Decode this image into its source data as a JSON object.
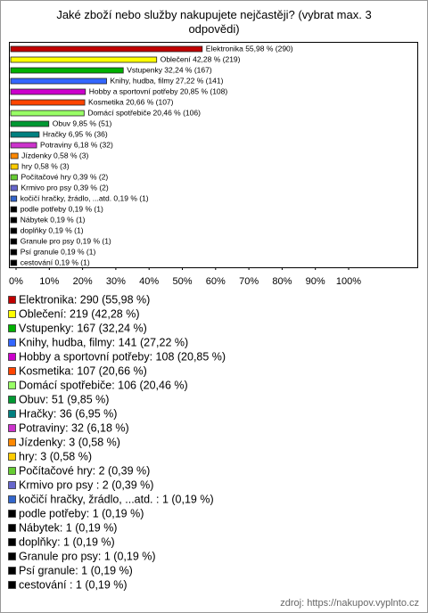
{
  "chart_data": {
    "type": "bar",
    "orientation": "horizontal",
    "title": "Jaké zboží nebo služby nakupujete nejčastěji? (vybrat max. 3 odpovědi)",
    "categories": [
      "Elektronika",
      "Oblečení",
      "Vstupenky",
      "Knihy, hudba, filmy",
      "Hobby a sportovní potřeby",
      "Kosmetika",
      "Domácí spotřebiče",
      "Obuv",
      "Hračky",
      "Potraviny",
      "Jízdenky",
      "hry",
      "Počítačové hry",
      "Krmivo pro psy ",
      "kočičí hračky, žrádlo, ...atd. ",
      "podle potřeby",
      "Nábytek",
      "doplňky",
      "Granule pro psy",
      "Psí granule",
      "cestování "
    ],
    "values": [
      55.98,
      42.28,
      32.24,
      27.22,
      20.85,
      20.66,
      20.46,
      9.85,
      6.95,
      6.18,
      0.58,
      0.58,
      0.39,
      0.39,
      0.19,
      0.19,
      0.19,
      0.19,
      0.19,
      0.19,
      0.19
    ],
    "value_labels": [
      "Elektronika 55,98 % (290)",
      "Oblečení 42,28 % (219)",
      "Vstupenky 32,24 % (167)",
      "Knihy, hudba, filmy 27,22 % (141)",
      "Hobby a sportovní potřeby 20,85 % (108)",
      "Kosmetika 20,66 % (107)",
      "Domácí spotřebiče 20,46 % (106)",
      "Obuv 9,85 % (51)",
      "Hračky 6,95 % (36)",
      "Potraviny 6,18 % (32)",
      "Jízdenky 0,58 % (3)",
      "hry 0,58 % (3)",
      "Počítačové hry 0,39 % (2)",
      "Krmivo pro psy  0,39 % (2)",
      "kočičí hračky, žrádlo, ...atd.  0,19 % (1)",
      "podle potřeby 0,19 % (1)",
      "Nábytek 0,19 % (1)",
      "doplňky 0,19 % (1)",
      "Granule pro psy 0,19 % (1)",
      "Psí granule 0,19 % (1)",
      "cestování  0,19 % (1)"
    ],
    "legend_labels": [
      "Elektronika: 290 (55,98 %)",
      "Oblečení: 219 (42,28 %)",
      "Vstupenky: 167 (32,24 %)",
      "Knihy, hudba, filmy: 141 (27,22 %)",
      "Hobby a sportovní potřeby: 108 (20,85 %)",
      "Kosmetika: 107 (20,66 %)",
      "Domácí spotřebiče: 106 (20,46 %)",
      "Obuv: 51 (9,85 %)",
      "Hračky: 36 (6,95 %)",
      "Potraviny: 32 (6,18 %)",
      "Jízdenky: 3 (0,58 %)",
      "hry: 3 (0,58 %)",
      "Počítačové hry: 2 (0,39 %)",
      "Krmivo pro psy : 2 (0,39 %)",
      "kočičí hračky, žrádlo, ...atd. : 1 (0,19 %)",
      "podle potřeby: 1 (0,19 %)",
      "Nábytek: 1 (0,19 %)",
      "doplňky: 1 (0,19 %)",
      "Granule pro psy: 1 (0,19 %)",
      "Psí granule: 1 (0,19 %)",
      "cestování : 1 (0,19 %)"
    ],
    "colors": [
      "#c00000",
      "#ffff00",
      "#00b000",
      "#3366ff",
      "#cc00cc",
      "#ff4400",
      "#99ff66",
      "#009933",
      "#008080",
      "#cc33cc",
      "#ff8800",
      "#ffcc00",
      "#66cc33",
      "#6666cc",
      "#3366cc",
      "#000000",
      "#000000",
      "#000000",
      "#000000",
      "#000000",
      "#000000"
    ],
    "xlim": [
      0,
      100
    ],
    "xticks": [
      {
        "value": 0,
        "label": "0%"
      },
      {
        "value": 10,
        "label": "10%"
      },
      {
        "value": 20,
        "label": "20%"
      },
      {
        "value": 30,
        "label": "30%"
      },
      {
        "value": 40,
        "label": "40%"
      },
      {
        "value": 50,
        "label": "50%"
      },
      {
        "value": 60,
        "label": "60%"
      },
      {
        "value": 70,
        "label": "70%"
      },
      {
        "value": 80,
        "label": "80%"
      },
      {
        "value": 90,
        "label": "90%"
      },
      {
        "value": 100,
        "label": "100%"
      }
    ],
    "source": "zdroj: https://nakupov.vyplnto.cz"
  }
}
